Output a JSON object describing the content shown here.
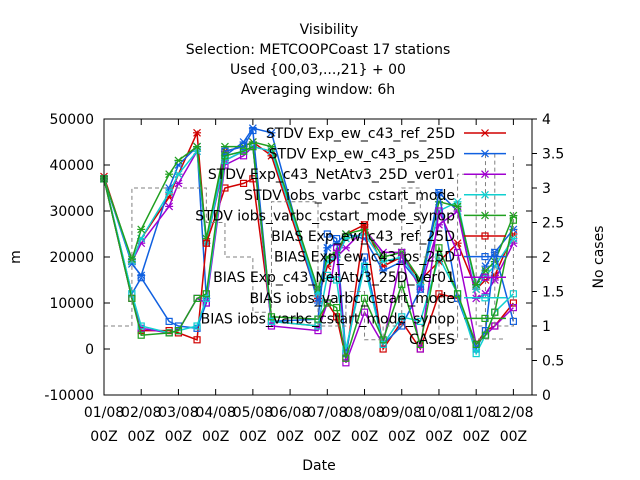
{
  "chart_data": {
    "type": "line",
    "title": "Visibility",
    "subtitle_lines": [
      "Selection: METCOOPCoast     17 stations",
      "Used {00,03,...,21} + 00",
      "Averaging window:  6h"
    ],
    "xlabel": "Date",
    "ylabel": "m",
    "y2label": "No cases",
    "ylim": [
      -10000,
      50000
    ],
    "y2lim": [
      0,
      4
    ],
    "yticks": [
      "-10000",
      "0",
      "10000",
      "20000",
      "30000",
      "40000",
      "50000"
    ],
    "y2ticks": [
      "0",
      "0.5",
      "1",
      "1.5",
      "2",
      "2.5",
      "3",
      "3.5",
      "4"
    ],
    "xtick_dates": [
      "01/08",
      "02/08",
      "03/08",
      "04/08",
      "05/08",
      "06/08",
      "07/08",
      "08/08",
      "09/08",
      "10/08",
      "11/08",
      "12/08"
    ],
    "xtick_times": [
      "00Z",
      "00Z",
      "00Z",
      "00Z",
      "00Z",
      "00Z",
      "00Z",
      "00Z",
      "00Z",
      "00Z",
      "00Z",
      "00Z"
    ],
    "grid": false,
    "legend_position": "top-right",
    "x": [
      0.0,
      0.75,
      1.0,
      1.75,
      2.0,
      2.5,
      2.75,
      3.25,
      3.75,
      4.0,
      4.5,
      5.75,
      6.0,
      6.25,
      6.5,
      7.0,
      7.5,
      8.0,
      8.5,
      9.0,
      9.5,
      10.0,
      10.25,
      10.5,
      11.0
    ],
    "series": [
      {
        "name": "STDV Exp_ew_c43_ref_25D",
        "color": "#d00000",
        "marker": "x",
        "axis": "y",
        "values": [
          37500,
          19000,
          24000,
          33000,
          38000,
          47000,
          23000,
          43000,
          44000,
          45000,
          42000,
          11000,
          18000,
          20000,
          25000,
          27000,
          18000,
          20000,
          15000,
          19000,
          23000,
          13000,
          15000,
          16000,
          25000
        ]
      },
      {
        "name": "STDV Exp_ew_c43_ps_25D",
        "color": "#1060e0",
        "marker": "x",
        "axis": "y",
        "values": [
          37000,
          18500,
          16000,
          35000,
          40000,
          44000,
          11000,
          42000,
          45000,
          48000,
          47000,
          10000,
          22000,
          23000,
          25000,
          24000,
          17000,
          19000,
          14000,
          34000,
          30000,
          14000,
          18000,
          21000,
          26000
        ]
      },
      {
        "name": "STDV Exp_c43_NetAtv3_25D_ver01",
        "color": "#a000d0",
        "marker": "x",
        "axis": "y",
        "values": [
          37000,
          19000,
          23000,
          31000,
          36000,
          43000,
          23000,
          41000,
          43000,
          44000,
          43000,
          12000,
          20000,
          20000,
          22000,
          26000,
          21000,
          21000,
          13000,
          27000,
          30000,
          11000,
          12000,
          15000,
          23000
        ]
      },
      {
        "name": "STDV iobs_varbc_cstart_mode",
        "color": "#10d0d0",
        "marker": "x",
        "axis": "y",
        "values": [
          37000,
          19000,
          24000,
          34000,
          38000,
          43000,
          23000,
          42000,
          43000,
          44000,
          43000,
          12000,
          19000,
          20000,
          24000,
          25000,
          19000,
          20000,
          14000,
          30000,
          32000,
          13000,
          16000,
          18000,
          24000
        ]
      },
      {
        "name": "STDV iobs_varbc_cstart_mode_synop",
        "color": "#20a020",
        "marker": "x",
        "axis": "y",
        "values": [
          37000,
          19500,
          26000,
          38000,
          41000,
          44000,
          24000,
          44000,
          44000,
          45000,
          44000,
          13000,
          20000,
          21000,
          25000,
          26000,
          20000,
          21000,
          15000,
          32000,
          31000,
          14000,
          17000,
          19000,
          29000
        ]
      },
      {
        "name": "BIAS Exp_ew_c43_ref_25D",
        "color": "#d00000",
        "marker": "square",
        "axis": "y",
        "values": [
          37000,
          11000,
          4000,
          4000,
          3500,
          2000,
          23000,
          35000,
          36000,
          37000,
          6000,
          5000,
          10000,
          7000,
          -2000,
          27000,
          0,
          6000,
          0,
          12000,
          11000,
          1000,
          4000,
          5000,
          10000
        ]
      },
      {
        "name": "BIAS Exp_ew_c43_ps_25D",
        "color": "#1060e0",
        "marker": "square",
        "axis": "y",
        "values": [
          37000,
          12000,
          15500,
          6000,
          5000,
          4500,
          10000,
          43000,
          44000,
          47500,
          6000,
          6500,
          25000,
          24000,
          -1000,
          20000,
          1000,
          5000,
          13000,
          34000,
          11000,
          0,
          4000,
          21000,
          6000
        ]
      },
      {
        "name": "BIAS Exp_c43_NetAtv3_25D_ver01",
        "color": "#a000d0",
        "marker": "square",
        "axis": "y",
        "values": [
          37000,
          11000,
          4500,
          3500,
          4000,
          11000,
          10000,
          40000,
          42000,
          44000,
          5000,
          4000,
          10000,
          22000,
          -3000,
          8000,
          1000,
          21000,
          0,
          30000,
          21000,
          1000,
          3000,
          5000,
          9000
        ]
      },
      {
        "name": "BIAS iobs_varbc_cstart_mode",
        "color": "#10d0d0",
        "marker": "square",
        "axis": "y",
        "values": [
          37000,
          12000,
          5000,
          3500,
          4000,
          5000,
          11000,
          41000,
          43000,
          44000,
          6000,
          5000,
          16000,
          15000,
          0,
          18000,
          1000,
          7000,
          6000,
          20000,
          12000,
          -1000,
          3000,
          8000,
          12000
        ]
      },
      {
        "name": "BIAS iobs_varbc_cstart_mode_synop",
        "color": "#20a020",
        "marker": "square",
        "axis": "y",
        "values": [
          37000,
          11000,
          3000,
          3500,
          4000,
          11000,
          12000,
          42000,
          43000,
          44000,
          7000,
          6500,
          10000,
          9000,
          -2000,
          11000,
          2000,
          14000,
          1000,
          22000,
          12000,
          1000,
          3000,
          8000,
          28000
        ]
      },
      {
        "name": "CASES",
        "color": "#808080",
        "marker": "none",
        "axis": "y2",
        "dashed": true,
        "values": [
          1,
          3,
          3,
          3,
          3,
          3,
          2.5,
          2,
          2,
          1.2,
          2.8,
          1,
          1,
          1,
          1.5,
          0.8,
          1,
          3,
          2,
          0.8,
          3.2,
          1,
          3.5,
          1,
          3.5
        ]
      }
    ]
  }
}
